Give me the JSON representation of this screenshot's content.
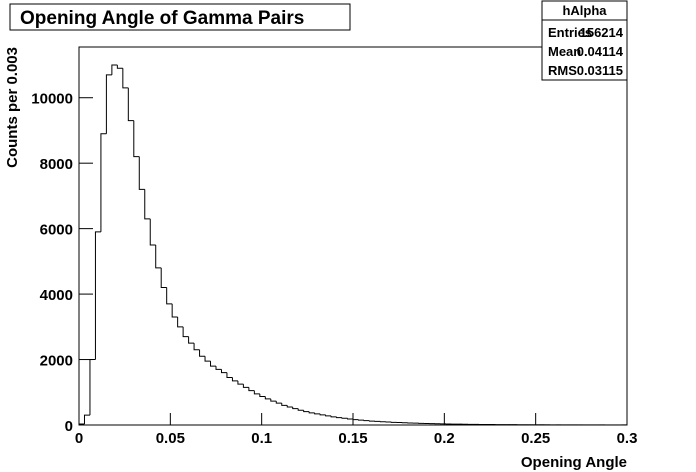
{
  "chart_data": {
    "type": "histogram",
    "title": "Opening Angle of Gamma Pairs",
    "xlabel": "Opening Angle",
    "ylabel": "Counts per 0.003",
    "bins": [
      0,
      0.003,
      0.006,
      0.009,
      0.012,
      0.015,
      0.018,
      0.021,
      0.024,
      0.027,
      0.03,
      0.033,
      0.036,
      0.039,
      0.042,
      0.045,
      0.048,
      0.051,
      0.054,
      0.057,
      0.06,
      0.063,
      0.066,
      0.069,
      0.072,
      0.075,
      0.078,
      0.081,
      0.084,
      0.087,
      0.09,
      0.093,
      0.096,
      0.099,
      0.102,
      0.105,
      0.108,
      0.111,
      0.114,
      0.117,
      0.12,
      0.123,
      0.126,
      0.129,
      0.132,
      0.135,
      0.138,
      0.141,
      0.144,
      0.147,
      0.15,
      0.153,
      0.156,
      0.159,
      0.162,
      0.165,
      0.168,
      0.171,
      0.174,
      0.177,
      0.18,
      0.183,
      0.186,
      0.189,
      0.192,
      0.195,
      0.198,
      0.201,
      0.204,
      0.207,
      0.21,
      0.213,
      0.216,
      0.219,
      0.222,
      0.225,
      0.228,
      0.231,
      0.234,
      0.237,
      0.24,
      0.243,
      0.246,
      0.249,
      0.252,
      0.255,
      0.258,
      0.261,
      0.264,
      0.267,
      0.27,
      0.273,
      0.276,
      0.279,
      0.282,
      0.285,
      0.288,
      0.291,
      0.294,
      0.297,
      0.3
    ],
    "values": [
      30,
      300,
      2000,
      5900,
      8900,
      10700,
      11000,
      10900,
      10300,
      9300,
      8200,
      7200,
      6300,
      5500,
      4800,
      4200,
      3700,
      3300,
      3000,
      2700,
      2500,
      2300,
      2100,
      1950,
      1800,
      1700,
      1600,
      1450,
      1350,
      1250,
      1150,
      1050,
      950,
      870,
      800,
      730,
      670,
      600,
      550,
      500,
      450,
      410,
      370,
      340,
      310,
      280,
      250,
      225,
      205,
      185,
      165,
      150,
      135,
      120,
      110,
      100,
      90,
      82,
      75,
      68,
      62,
      56,
      51,
      46,
      42,
      38,
      34,
      31,
      28,
      25,
      23,
      21,
      19,
      17,
      15,
      14,
      13,
      12,
      11,
      10,
      9,
      8,
      7,
      7,
      6,
      6,
      5,
      5,
      4,
      4,
      4,
      3,
      3,
      3,
      3,
      2,
      2,
      2,
      2,
      2
    ],
    "color": "#000000",
    "xlim": [
      0,
      0.3
    ],
    "xticks": [
      0,
      0.05,
      0.1,
      0.15,
      0.2,
      0.25,
      0.3
    ],
    "ylim": [
      0,
      11550
    ],
    "yticks": [
      0,
      2000,
      4000,
      6000,
      8000,
      10000
    ],
    "stats": {
      "name": "hAlpha",
      "rows": [
        [
          "Entries",
          "156214"
        ],
        [
          "Mean",
          "0.04114"
        ],
        [
          "RMS",
          "0.03115"
        ]
      ]
    }
  }
}
